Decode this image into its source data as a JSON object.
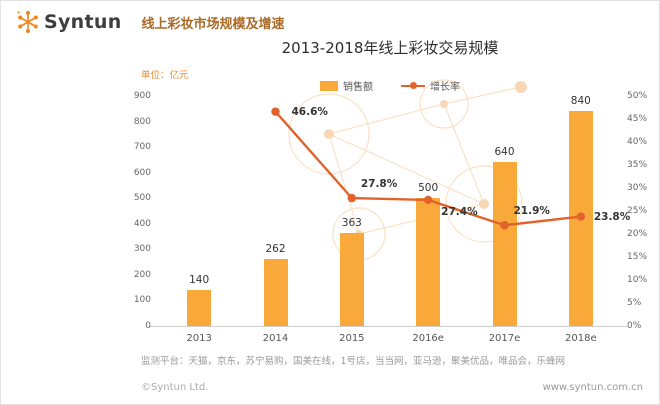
{
  "header": {
    "brand": "Syntun",
    "title": "线上彩妆市场规模及增速"
  },
  "chart": {
    "title": "2013-2018年线上彩妆交易规模",
    "unit_label": "单位：亿元",
    "legend": [
      {
        "label": "销售额",
        "type": "bar"
      },
      {
        "label": "增长率",
        "type": "line"
      }
    ]
  },
  "chart_data": {
    "type": "bar+line",
    "title": "2013-2018年线上彩妆交易规模",
    "unit": "亿元",
    "categories": [
      "2013",
      "2014",
      "2015",
      "2016e",
      "2017e",
      "2018e"
    ],
    "series": [
      {
        "name": "销售额",
        "type": "bar",
        "axis": "left",
        "values": [
          140,
          262,
          363,
          500,
          640,
          840
        ]
      },
      {
        "name": "增长率",
        "type": "line",
        "axis": "right",
        "values": [
          null,
          46.6,
          27.8,
          27.4,
          21.9,
          23.8
        ],
        "labels": [
          "",
          "46.6%",
          "27.8%",
          "27.4%",
          "21.9%",
          "23.8%"
        ]
      }
    ],
    "left_axis": {
      "min": 0,
      "max": 900,
      "step": 100,
      "ticks": [
        "0",
        "100",
        "200",
        "300",
        "400",
        "500",
        "600",
        "700",
        "800",
        "900"
      ]
    },
    "right_axis": {
      "min": 0,
      "max": 50,
      "step": 5,
      "format": "percent",
      "ticks": [
        "0%",
        "5%",
        "10%",
        "15%",
        "20%",
        "25%",
        "30%",
        "35%",
        "40%",
        "45%",
        "50%"
      ]
    },
    "legend_position": "top-center",
    "grid": "off",
    "colors": {
      "bar": "#F9A93A",
      "line": "#E2622B",
      "brand": "#F08519",
      "header_text": "#AA6A28",
      "title_text": "#2E2E2E",
      "axis_text": "#666666"
    }
  },
  "footer": {
    "platforms": "监测平台：天猫，京东，苏宁易购，国美在线，1号店，当当网，亚马逊，聚美优品，唯品会，乐蜂网",
    "copyright": "©Syntun Ltd.",
    "website": "www.syntun.com.cn"
  }
}
